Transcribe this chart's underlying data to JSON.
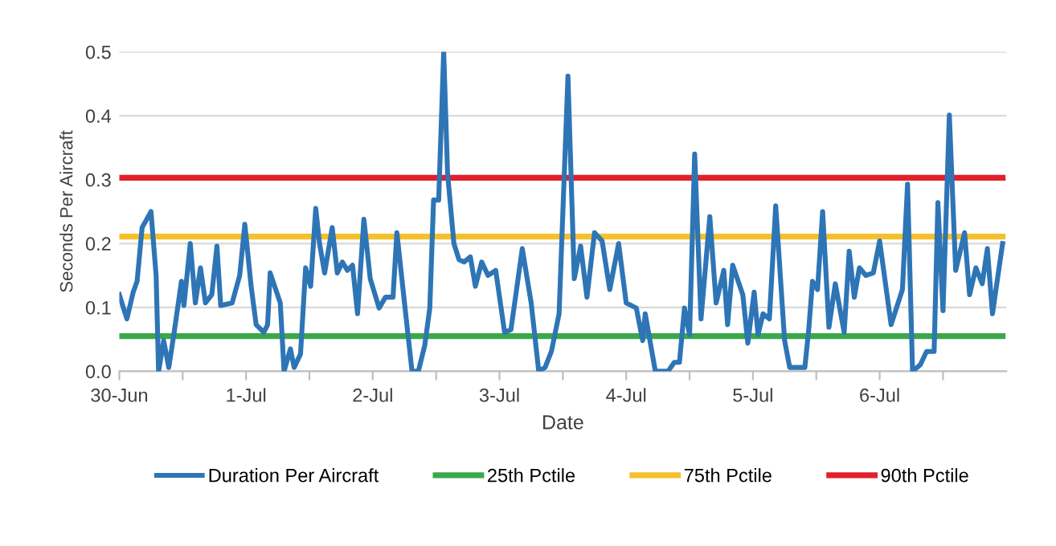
{
  "chart_data": {
    "type": "line",
    "xlabel": "Date",
    "ylabel": "Seconds Per Aircraft",
    "xlim": [
      "--06-30",
      "--07-07"
    ],
    "ylim": [
      0,
      0.5
    ],
    "xticks": [
      {
        "value": "--06-30",
        "label": "30-Jun"
      },
      {
        "value": "--06-30T12:00",
        "label": null
      },
      {
        "value": "--07-01",
        "label": "1-Jul"
      },
      {
        "value": "--07-01T12:00",
        "label": null
      },
      {
        "value": "--07-02",
        "label": "2-Jul"
      },
      {
        "value": "--07-02T12:00",
        "label": null
      },
      {
        "value": "--07-03",
        "label": "3-Jul"
      },
      {
        "value": "--07-03T12:00",
        "label": null
      },
      {
        "value": "--07-04",
        "label": "4-Jul"
      },
      {
        "value": "--07-04T12:00",
        "label": null
      },
      {
        "value": "--07-05",
        "label": "5-Jul"
      },
      {
        "value": "--07-05T12:00",
        "label": null
      },
      {
        "value": "--07-06",
        "label": "6-Jul"
      },
      {
        "value": "--07-06T12:00",
        "label": null
      }
    ],
    "yticks": [
      {
        "value": 0,
        "label": "0.0"
      },
      0.1,
      0.2,
      0.3,
      0.4,
      0.5
    ],
    "grid": "y",
    "legend": "bottom",
    "marker": "none",
    "line_style": "solid",
    "series": [
      {
        "name": "Duration Per Aircraft",
        "color": "#2e75b6",
        "x": [
          "--06-30T00:00",
          "--06-30T01:26",
          "--06-30T02:38",
          "--06-30T03:22",
          "--06-30T04:19",
          "--06-30T06:00",
          "--06-30T06:58",
          "--06-30T07:26",
          "--06-30T08:24",
          "--06-30T09:22",
          "--06-30T10:19",
          "--06-30T11:46",
          "--06-30T12:14",
          "--06-30T13:26",
          "--06-30T14:24",
          "--06-30T15:22",
          "--06-30T16:19",
          "--06-30T17:31",
          "--06-30T18:29",
          "--06-30T19:12",
          "--06-30T21:22",
          "--06-30T22:48",
          "--06-30T23:46",
          "--07-01T00:58",
          "--07-01T01:55",
          "--07-01T03:22",
          "--07-01T04:05",
          "--07-01T04:34",
          "--07-01T06:29",
          "--07-01T07:12",
          "--07-01T08:24",
          "--07-01T09:07",
          "--07-01T10:19",
          "--07-01T11:17",
          "--07-01T12:14",
          "--07-01T13:12",
          "--07-01T13:55",
          "--07-01T14:53",
          "--07-01T16:19",
          "--07-01T17:17",
          "--07-01T18:14",
          "--07-01T19:12",
          "--07-01T20:10",
          "--07-01T21:07",
          "--07-01T22:19",
          "--07-01T23:31",
          "--07-02T01:12",
          "--07-02T02:24",
          "--07-02T03:50",
          "--07-02T04:34",
          "--07-02T06:14",
          "--07-02T07:26",
          "--07-02T08:38",
          "--07-02T09:50",
          "--07-02T10:48",
          "--07-02T11:31",
          "--07-02T12:29",
          "--07-02T13:26",
          "--07-02T14:10",
          "--07-02T15:22",
          "--07-02T16:19",
          "--07-02T17:17",
          "--07-02T18:29",
          "--07-02T19:26",
          "--07-02T20:38",
          "--07-02T21:50",
          "--07-02T23:17",
          "--07-03T00:58",
          "--07-03T02:10",
          "--07-03T04:19",
          "--07-03T06:00",
          "--07-03T07:26",
          "--07-03T08:38",
          "--07-03T09:50",
          "--07-03T11:17",
          "--07-03T12:58",
          "--07-03T14:10",
          "--07-03T15:22",
          "--07-03T16:34",
          "--07-03T18:00",
          "--07-03T19:26",
          "--07-03T20:53",
          "--07-03T22:34",
          "--07-04T00:00",
          "--07-04T01:55",
          "--07-04T03:07",
          "--07-04T03:36",
          "--07-04T05:31",
          "--07-04T07:55",
          "--07-04T09:07",
          "--07-04T10:05",
          "--07-04T11:02",
          "--07-04T12:00",
          "--07-04T12:58",
          "--07-04T14:10",
          "--07-04T15:50",
          "--07-04T17:02",
          "--07-04T18:29",
          "--07-04T19:12",
          "--07-04T20:10",
          "--07-04T22:05",
          "--07-04T23:02",
          "--07-05T00:14",
          "--07-05T00:58",
          "--07-05T01:55",
          "--07-05T03:07",
          "--07-05T04:19",
          "--07-05T06:00",
          "--07-05T06:58",
          "--07-05T09:50",
          "--07-05T10:34",
          "--07-05T11:17",
          "--07-05T12:14",
          "--07-05T13:12",
          "--07-05T14:24",
          "--07-05T15:36",
          "--07-05T17:17",
          "--07-05T18:14",
          "--07-05T19:12",
          "--07-05T20:10",
          "--07-05T21:22",
          "--07-05T22:48",
          "--07-06T00:00",
          "--07-06T02:10",
          "--07-06T04:19",
          "--07-06T05:17",
          "--07-06T06:14",
          "--07-06T07:41",
          "--07-06T08:53",
          "--07-06T10:19",
          "--07-06T11:02",
          "--07-06T12:00",
          "--07-06T13:12",
          "--07-06T14:24",
          "--07-06T16:05",
          "--07-06T17:02",
          "--07-06T18:14",
          "--07-06T19:26",
          "--07-06T20:24",
          "--07-06T21:22",
          "--07-06T23:17"
        ],
        "values": [
          0.12,
          0.082,
          0.124,
          0.141,
          0.225,
          0.25,
          0.15,
          0.0,
          0.048,
          0.006,
          0.057,
          0.141,
          0.103,
          0.2,
          0.107,
          0.162,
          0.107,
          0.12,
          0.196,
          0.103,
          0.107,
          0.15,
          0.23,
          0.133,
          0.073,
          0.061,
          0.073,
          0.154,
          0.107,
          0.0,
          0.035,
          0.006,
          0.027,
          0.162,
          0.133,
          0.255,
          0.2,
          0.154,
          0.225,
          0.154,
          0.171,
          0.158,
          0.166,
          0.09,
          0.238,
          0.145,
          0.099,
          0.116,
          0.116,
          0.217,
          0.09,
          0.0,
          0.0,
          0.04,
          0.099,
          0.268,
          0.268,
          0.5,
          0.31,
          0.2,
          0.175,
          0.171,
          0.179,
          0.133,
          0.171,
          0.15,
          0.158,
          0.061,
          0.065,
          0.192,
          0.107,
          0.0,
          0.006,
          0.031,
          0.09,
          0.462,
          0.145,
          0.196,
          0.116,
          0.217,
          0.204,
          0.128,
          0.2,
          0.107,
          0.099,
          0.048,
          0.09,
          0.0,
          0.0,
          0.014,
          0.014,
          0.099,
          0.057,
          0.34,
          0.082,
          0.242,
          0.107,
          0.158,
          0.073,
          0.166,
          0.12,
          0.044,
          0.124,
          0.057,
          0.09,
          0.082,
          0.259,
          0.048,
          0.006,
          0.006,
          0.065,
          0.141,
          0.128,
          0.25,
          0.069,
          0.137,
          0.061,
          0.188,
          0.116,
          0.162,
          0.15,
          0.154,
          0.204,
          0.073,
          0.128,
          0.293,
          0.0,
          0.01,
          0.031,
          0.031,
          0.264,
          0.095,
          0.401,
          0.158,
          0.217,
          0.12,
          0.162,
          0.137,
          0.192,
          0.09,
          0.2
        ]
      },
      {
        "name": "25th Pctile",
        "color": "#3aa84a",
        "x": [
          "--06-30T00:00",
          "--07-06T23:17"
        ],
        "values": [
          0.055,
          0.055
        ]
      },
      {
        "name": "75th Pctile",
        "color": "#f5c02c",
        "x": [
          "--06-30T00:00",
          "--07-06T23:17"
        ],
        "values": [
          0.211,
          0.211
        ]
      },
      {
        "name": "90th Pctile",
        "color": "#e0202a",
        "x": [
          "--06-30T00:00",
          "--07-06T23:17"
        ],
        "values": [
          0.303,
          0.303
        ]
      }
    ]
  }
}
